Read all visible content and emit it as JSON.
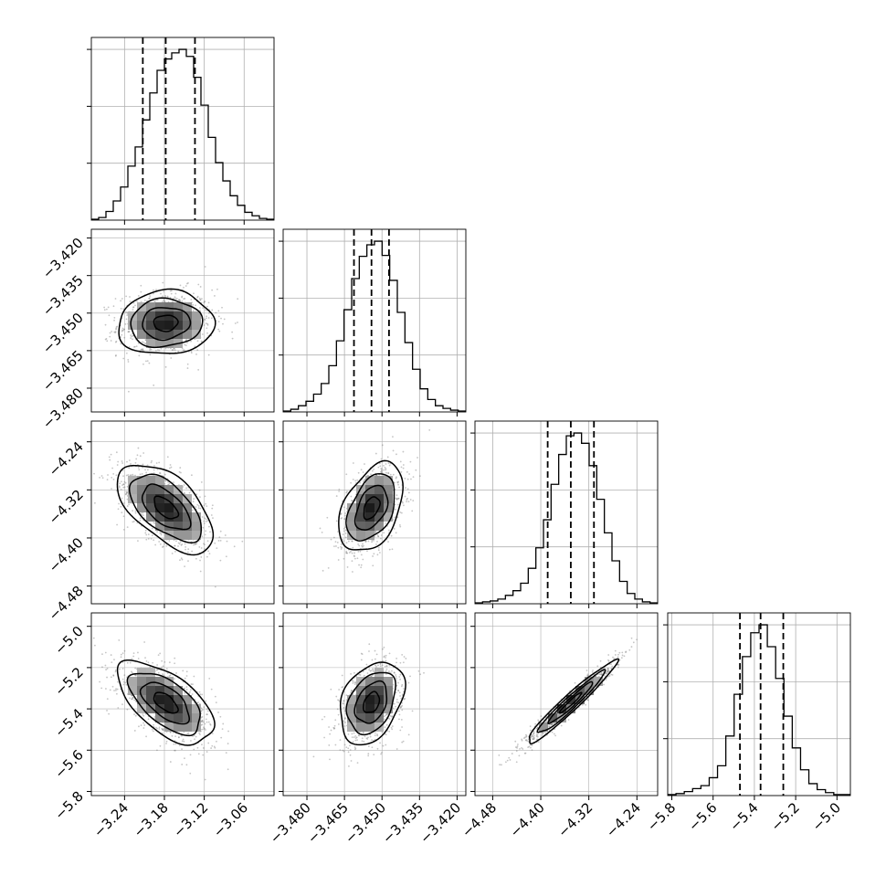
{
  "chart_data": {
    "type": "corner",
    "title": "",
    "params": [
      {
        "range": [
          -3.29,
          -3.015
        ],
        "ticks": [
          -3.24,
          -3.18,
          -3.12,
          -3.06
        ],
        "tick_labels": [
          "−3.24",
          "−3.18",
          "−3.12",
          "−3.06"
        ],
        "quantiles": [
          -3.2125,
          -3.178,
          -3.134
        ],
        "hist": [
          1,
          3,
          10,
          22,
          38,
          62,
          84,
          115,
          146,
          172,
          185,
          192,
          196,
          188,
          164,
          132,
          95,
          66,
          45,
          28,
          17,
          9,
          5,
          2,
          1
        ]
      },
      {
        "range": [
          -3.4895,
          -3.4165
        ],
        "ticks": [
          -3.48,
          -3.465,
          -3.45,
          -3.435,
          -3.42
        ],
        "tick_labels": [
          "−3.480",
          "−3.465",
          "−3.450",
          "−3.435",
          "−3.420"
        ],
        "quantiles": [
          -3.4612,
          -3.4542,
          -3.4472
        ],
        "hist": [
          1,
          3,
          7,
          12,
          20,
          32,
          52,
          80,
          115,
          150,
          175,
          188,
          192,
          176,
          148,
          112,
          78,
          48,
          26,
          14,
          7,
          4,
          2,
          1
        ]
      },
      {
        "range": [
          -4.5095,
          -4.2055
        ],
        "ticks": [
          -4.48,
          -4.4,
          -4.32,
          -4.24
        ],
        "tick_labels": [
          "−4.48",
          "−4.40",
          "−4.32",
          "−4.24"
        ],
        "quantiles": [
          -4.3885,
          -4.35,
          -4.3115
        ],
        "hist": [
          1,
          2,
          3,
          5,
          9,
          14,
          22,
          38,
          60,
          90,
          128,
          160,
          180,
          183,
          172,
          148,
          112,
          76,
          46,
          24,
          11,
          5,
          2,
          1
        ]
      },
      {
        "range": [
          -5.82,
          -4.935
        ],
        "ticks": [
          -5.8,
          -5.6,
          -5.4,
          -5.2,
          -5.0
        ],
        "tick_labels": [
          "−5.8",
          "−5.6",
          "−5.4",
          "−5.2",
          "−5.0"
        ],
        "quantiles": [
          -5.47,
          -5.37,
          -5.26
        ],
        "hist": [
          1,
          2,
          4,
          7,
          10,
          18,
          30,
          60,
          102,
          140,
          164,
          172,
          150,
          118,
          80,
          48,
          26,
          12,
          6,
          3,
          1,
          1
        ]
      }
    ],
    "pairs": [
      {
        "row": 1,
        "col": 0,
        "center": [
          -3.178,
          -3.454
        ],
        "sx": 0.036,
        "sy": 0.0064,
        "rho": 0.06
      },
      {
        "row": 2,
        "col": 0,
        "center": [
          -3.178,
          -4.35
        ],
        "sx": 0.036,
        "sy": 0.037,
        "rho": -0.58
      },
      {
        "row": 2,
        "col": 1,
        "center": [
          -3.4542,
          -4.35
        ],
        "sx": 0.0064,
        "sy": 0.037,
        "rho": 0.42
      },
      {
        "row": 3,
        "col": 0,
        "center": [
          -3.178,
          -5.37
        ],
        "sx": 0.036,
        "sy": 0.1,
        "rho": -0.6
      },
      {
        "row": 3,
        "col": 1,
        "center": [
          -3.4542,
          -5.37
        ],
        "sx": 0.0064,
        "sy": 0.1,
        "rho": 0.34
      },
      {
        "row": 3,
        "col": 2,
        "center": [
          -4.35,
          -5.37
        ],
        "sx": 0.037,
        "sy": 0.1,
        "rho": 0.965
      }
    ],
    "grid": true,
    "legend": "none",
    "colors": {
      "line": "#000000",
      "points": "#7f7f7f",
      "grid": "#b0b0b0",
      "fill_dark": "#000000"
    }
  }
}
